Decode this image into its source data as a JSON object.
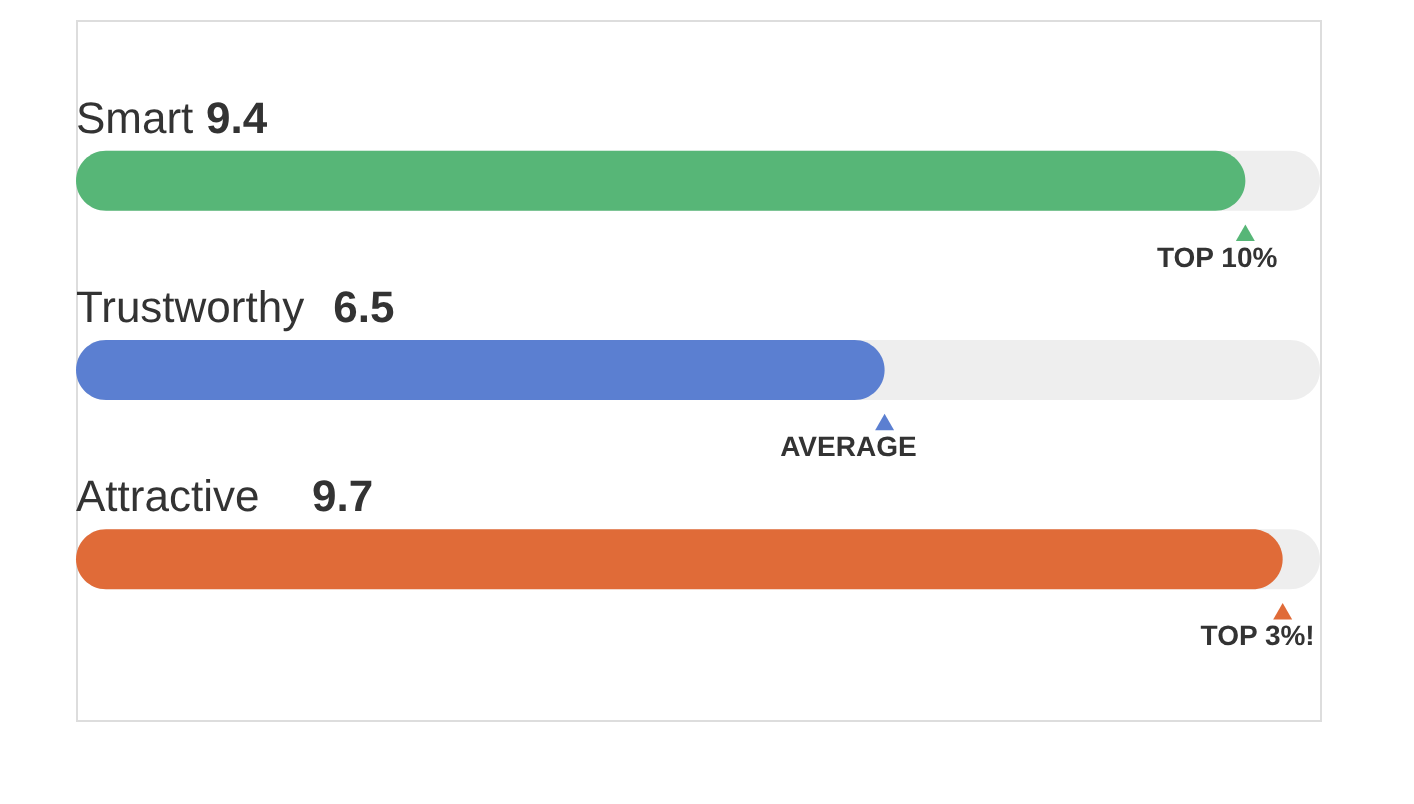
{
  "chart_data": {
    "type": "bar",
    "orientation": "horizontal",
    "categories": [
      "Smart",
      "Trustworthy",
      "Attractive"
    ],
    "series": [
      {
        "values": [
          9.4,
          6.5,
          9.7
        ],
        "value_labels": [
          "9.4",
          "6.5",
          "9.7"
        ],
        "colors": [
          "#57b677",
          "#5b7fd1",
          "#e06b38"
        ]
      },
      {
        "type": "scatter",
        "marker": "triangle",
        "values": [
          9.4,
          6.5,
          9.7
        ],
        "colors": [
          "#57b677",
          "#5b7fd1",
          "#e06b38"
        ]
      }
    ],
    "xlim": [
      0,
      10
    ],
    "tick_labels": false,
    "annotations": [
      {
        "text": "TOP 10%",
        "x": 9.4,
        "y": "Smart"
      },
      {
        "text": "AVERAGE",
        "x": 6.5,
        "y": "Trustworthy"
      },
      {
        "text": "TOP 3%!",
        "x": 9.7,
        "y": "Attractive"
      }
    ]
  }
}
